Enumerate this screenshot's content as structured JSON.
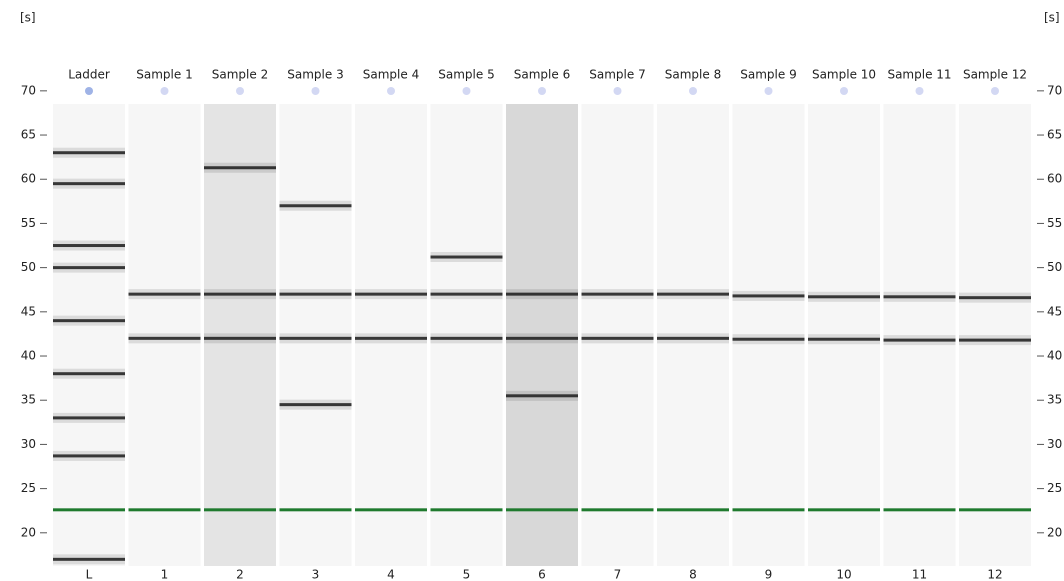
{
  "chart_data": {
    "type": "gel",
    "y_unit": "[s]",
    "ylim": [
      15,
      71
    ],
    "yticks": [
      20,
      25,
      30,
      35,
      40,
      45,
      50,
      55,
      60,
      65,
      70
    ],
    "marker_color": "#1f7a2e",
    "band_color": "#1a1a1a",
    "lane_color": "#f6f6f6",
    "lanes": [
      {
        "name": "Ladder",
        "number": "L",
        "bands": [
          63,
          59.5,
          52.5,
          50,
          44,
          38,
          33,
          28.7,
          17
        ],
        "marker": 22.6
      },
      {
        "name": "Sample 1",
        "number": "1",
        "bands": [
          47,
          42
        ],
        "marker": 22.6
      },
      {
        "name": "Sample 2",
        "number": "2",
        "bands": [
          61.3,
          47,
          42
        ],
        "marker": 22.6,
        "background": "#e4e4e4"
      },
      {
        "name": "Sample 3",
        "number": "3",
        "bands": [
          57,
          47,
          42,
          34.5
        ],
        "marker": 22.6
      },
      {
        "name": "Sample 4",
        "number": "4",
        "bands": [
          47,
          42
        ],
        "marker": 22.6
      },
      {
        "name": "Sample 5",
        "number": "5",
        "bands": [
          51.2,
          47,
          42
        ],
        "marker": 22.6
      },
      {
        "name": "Sample 6",
        "number": "6",
        "bands": [
          47,
          42,
          35.5
        ],
        "marker": 22.6,
        "background": "#d8d8d8"
      },
      {
        "name": "Sample 7",
        "number": "7",
        "bands": [
          47,
          42
        ],
        "marker": 22.6
      },
      {
        "name": "Sample 8",
        "number": "8",
        "bands": [
          47,
          42
        ],
        "marker": 22.6
      },
      {
        "name": "Sample 9",
        "number": "9",
        "bands": [
          46.8,
          41.9
        ],
        "marker": 22.6
      },
      {
        "name": "Sample 10",
        "number": "10",
        "bands": [
          46.7,
          41.9
        ],
        "marker": 22.6
      },
      {
        "name": "Sample 11",
        "number": "11",
        "bands": [
          46.7,
          41.8
        ],
        "marker": 22.6
      },
      {
        "name": "Sample 12",
        "number": "12",
        "bands": [
          46.6,
          41.8
        ],
        "marker": 22.6
      }
    ]
  }
}
